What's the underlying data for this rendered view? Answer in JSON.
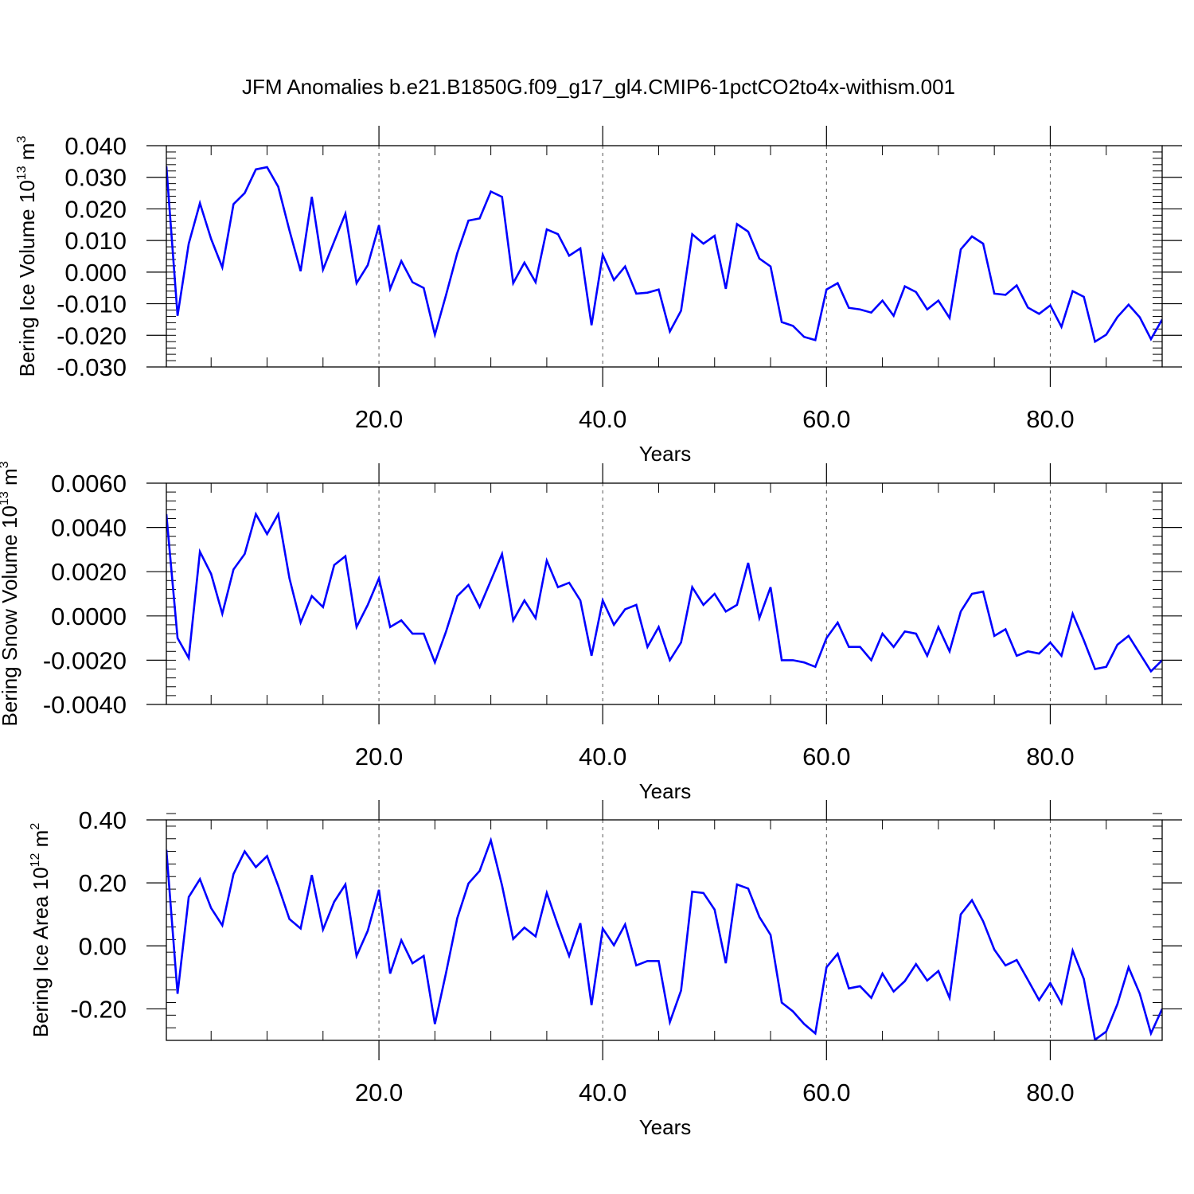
{
  "title": "JFM Anomalies b.e21.B1850G.f09_g17_gl4.CMIP6-1pctCO2to4x-withism.001",
  "line_color": "#0000ff",
  "chart_data": [
    {
      "type": "line",
      "xlabel": "Years",
      "ylabel": "Bering Ice Volume 10",
      "ylabel_exp": "13",
      "ylabel_unit": " m",
      "ylabel_unit_exp": "3",
      "xlim": [
        1,
        90
      ],
      "ylim": [
        -0.03,
        0.04
      ],
      "xticks": [
        20,
        40,
        60,
        80
      ],
      "xtick_labels": [
        "20.0",
        "40.0",
        "60.0",
        "80.0"
      ],
      "yticks": [
        0.04,
        0.03,
        0.02,
        0.01,
        0.0,
        -0.01,
        -0.02,
        -0.03
      ],
      "ytick_labels": [
        "0.040",
        "0.030",
        "0.020",
        "0.010",
        "0.000",
        "-0.010",
        "-0.020",
        "-0.030"
      ],
      "grid": "vertical-dashed",
      "series": [
        {
          "values": [
            0.0335,
            -0.0138,
            0.009,
            0.0218,
            0.0105,
            0.0015,
            0.0215,
            0.025,
            0.0325,
            0.0332,
            0.027,
            0.0132,
            0.0003,
            0.0238,
            0.0008,
            0.0097,
            0.0185,
            -0.0035,
            0.0022,
            0.0148,
            -0.0053,
            0.0035,
            -0.0032,
            -0.005,
            -0.0198,
            -0.0072,
            0.006,
            0.0163,
            0.017,
            0.0255,
            0.0238,
            -0.0035,
            0.003,
            -0.0032,
            0.0135,
            0.012,
            0.0052,
            0.0075,
            -0.0168,
            0.0055,
            -0.0025,
            0.0018,
            -0.0068,
            -0.0065,
            -0.0055,
            -0.0188,
            -0.0122,
            0.012,
            0.009,
            0.0115,
            -0.0053,
            0.0152,
            0.0128,
            0.0043,
            0.0018,
            -0.0158,
            -0.017,
            -0.0205,
            -0.0215,
            -0.0055,
            -0.0035,
            -0.0113,
            -0.0118,
            -0.0128,
            -0.009,
            -0.0138,
            -0.0045,
            -0.0063,
            -0.0118,
            -0.009,
            -0.0145,
            0.0072,
            0.0113,
            0.009,
            -0.0068,
            -0.0072,
            -0.0042,
            -0.0112,
            -0.0132,
            -0.0105,
            -0.0173,
            -0.006,
            -0.0078,
            -0.022,
            -0.0198,
            -0.0142,
            -0.0103,
            -0.0143,
            -0.0212,
            -0.015
          ]
        }
      ]
    },
    {
      "type": "line",
      "xlabel": "Years",
      "ylabel": "Bering Snow Volume 10",
      "ylabel_exp": "13",
      "ylabel_unit": " m",
      "ylabel_unit_exp": "3",
      "xlim": [
        1,
        90
      ],
      "ylim": [
        -0.004,
        0.006
      ],
      "xticks": [
        20,
        40,
        60,
        80
      ],
      "xtick_labels": [
        "20.0",
        "40.0",
        "60.0",
        "80.0"
      ],
      "yticks": [
        0.006,
        0.004,
        0.002,
        0.0,
        -0.002,
        -0.004
      ],
      "ytick_labels": [
        "0.0060",
        "0.0040",
        "0.0020",
        "0.0000",
        "-0.0020",
        "-0.0040"
      ],
      "grid": "vertical-dashed",
      "series": [
        {
          "values": [
            0.0046,
            -0.001,
            -0.0019,
            0.0029,
            0.0019,
            0.0001,
            0.0021,
            0.0028,
            0.0046,
            0.0037,
            0.0046,
            0.0017,
            -0.0003,
            0.0009,
            0.0004,
            0.0023,
            0.0027,
            -0.0005,
            0.0005,
            0.0017,
            -0.0005,
            -0.0002,
            -0.0008,
            -0.0008,
            -0.0021,
            -0.0007,
            0.0009,
            0.0014,
            0.0004,
            0.0016,
            0.0028,
            -0.0002,
            0.0007,
            -0.0001,
            0.0025,
            0.0013,
            0.0015,
            0.0007,
            -0.0018,
            0.0007,
            -0.0004,
            0.0003,
            0.0005,
            -0.0014,
            -0.0005,
            -0.002,
            -0.0012,
            0.0013,
            0.0005,
            0.001,
            0.0002,
            0.0005,
            0.0024,
            -0.0001,
            0.0013,
            -0.002,
            -0.002,
            -0.0021,
            -0.0023,
            -0.001,
            -0.0003,
            -0.0014,
            -0.0014,
            -0.002,
            -0.0008,
            -0.0014,
            -0.0007,
            -0.0008,
            -0.0018,
            -0.0005,
            -0.0016,
            0.0002,
            0.001,
            0.0011,
            -0.0009,
            -0.0006,
            -0.0018,
            -0.0016,
            -0.0017,
            -0.0012,
            -0.0018,
            0.0001,
            -0.0011,
            -0.0024,
            -0.0023,
            -0.0013,
            -0.0009,
            -0.0017,
            -0.0025,
            -0.002
          ]
        }
      ]
    },
    {
      "type": "line",
      "xlabel": "Years",
      "ylabel": "Bering Ice Area 10",
      "ylabel_exp": "12",
      "ylabel_unit": " m",
      "ylabel_unit_exp": "2",
      "xlim": [
        1,
        90
      ],
      "ylim": [
        -0.3,
        0.4
      ],
      "xticks": [
        20,
        40,
        60,
        80
      ],
      "xtick_labels": [
        "20.0",
        "40.0",
        "60.0",
        "80.0"
      ],
      "yticks": [
        0.4,
        0.2,
        0.0,
        -0.2
      ],
      "ytick_labels": [
        "0.40",
        "0.20",
        "0.00",
        "-0.20"
      ],
      "grid": "vertical-dashed",
      "series": [
        {
          "values": [
            0.305,
            -0.152,
            0.155,
            0.212,
            0.12,
            0.065,
            0.228,
            0.3,
            0.25,
            0.285,
            0.19,
            0.085,
            0.055,
            0.225,
            0.052,
            0.14,
            0.195,
            -0.032,
            0.048,
            0.178,
            -0.088,
            0.018,
            -0.055,
            -0.032,
            -0.248,
            -0.085,
            0.088,
            0.198,
            0.238,
            0.335,
            0.192,
            0.022,
            0.058,
            0.03,
            0.168,
            0.065,
            -0.032,
            0.072,
            -0.188,
            0.055,
            0.002,
            0.068,
            -0.062,
            -0.048,
            -0.048,
            -0.242,
            -0.142,
            0.172,
            0.168,
            0.115,
            -0.055,
            0.195,
            0.182,
            0.092,
            0.035,
            -0.18,
            -0.208,
            -0.248,
            -0.278,
            -0.068,
            -0.025,
            -0.135,
            -0.128,
            -0.165,
            -0.088,
            -0.145,
            -0.112,
            -0.058,
            -0.11,
            -0.08,
            -0.165,
            0.1,
            0.145,
            0.078,
            -0.012,
            -0.062,
            -0.045,
            -0.108,
            -0.172,
            -0.118,
            -0.182,
            -0.015,
            -0.105,
            -0.298,
            -0.272,
            -0.185,
            -0.068,
            -0.152,
            -0.278,
            -0.2
          ]
        }
      ]
    }
  ]
}
